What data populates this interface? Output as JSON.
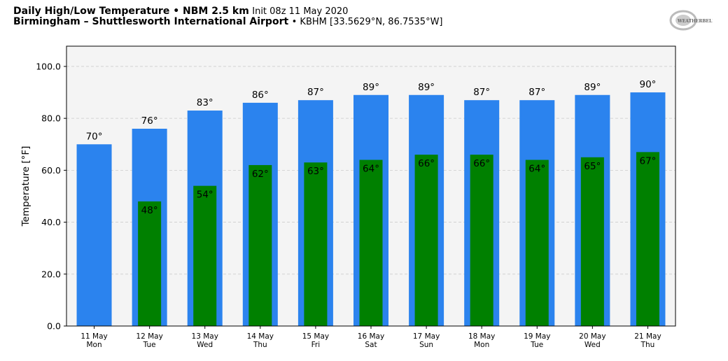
{
  "header": {
    "title_bold": "Daily High/Low Temperature • NBM 2.5 km",
    "init": "Init 08z 11 May 2020",
    "location_bold": "Birmingham – Shuttlesworth International Airport",
    "station": "• KBHM [33.5629°N, 86.7535°W]"
  },
  "logo_text": "WeatherBELL",
  "colors": {
    "high": "#2b83ee",
    "low": "#008000",
    "plot_bg": "#f4f4f4"
  },
  "chart_data": {
    "type": "bar",
    "title": "Daily High/Low Temperature",
    "xlabel": "",
    "ylabel": "Temperature [°F]",
    "ylim": [
      0,
      107.8
    ],
    "yticks": [
      0,
      20,
      40,
      60,
      80,
      100
    ],
    "ytick_labels": [
      "0.0",
      "20.0",
      "40.0",
      "60.0",
      "80.0",
      "100.0"
    ],
    "grid": true,
    "categories": [
      "11 May",
      "12 May",
      "13 May",
      "14 May",
      "15 May",
      "16 May",
      "17 May",
      "18 May",
      "19 May",
      "20 May",
      "21 May"
    ],
    "weekdays": [
      "Mon",
      "Tue",
      "Wed",
      "Thu",
      "Fri",
      "Sat",
      "Sun",
      "Mon",
      "Tue",
      "Wed",
      "Thu"
    ],
    "series": [
      {
        "name": "High",
        "values": [
          70,
          76,
          83,
          86,
          87,
          89,
          89,
          87,
          87,
          89,
          90
        ],
        "labels": [
          "70°",
          "76°",
          "83°",
          "86°",
          "87°",
          "89°",
          "89°",
          "87°",
          "87°",
          "89°",
          "90°"
        ]
      },
      {
        "name": "Low",
        "values": [
          null,
          48,
          54,
          62,
          63,
          64,
          66,
          66,
          64,
          65,
          67
        ],
        "labels": [
          null,
          "48°",
          "54°",
          "62°",
          "63°",
          "64°",
          "66°",
          "66°",
          "64°",
          "65°",
          "67°"
        ]
      }
    ]
  }
}
